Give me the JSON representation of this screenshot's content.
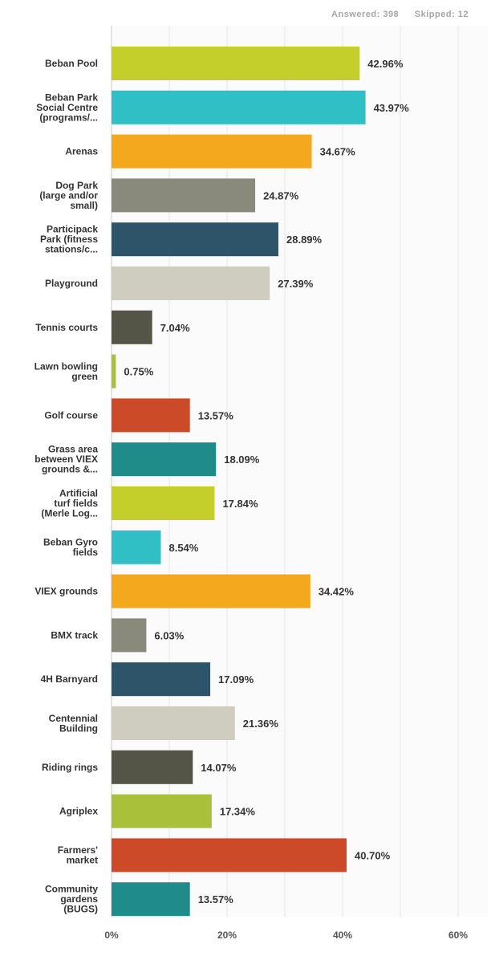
{
  "header": {
    "answered": "Answered: 398",
    "skipped": "Skipped: 12"
  },
  "chart_data": {
    "type": "bar",
    "orientation": "horizontal",
    "categories": [
      [
        "Beban Pool"
      ],
      [
        "Beban Park",
        "Social Centre",
        "(programs/..."
      ],
      [
        "Arenas"
      ],
      [
        "Dog Park",
        "(large and/or",
        "small)"
      ],
      [
        "Participack",
        "Park (fitness",
        "stations/c..."
      ],
      [
        "Playground"
      ],
      [
        "Tennis courts"
      ],
      [
        "Lawn bowling",
        "green"
      ],
      [
        "Golf course"
      ],
      [
        "Grass area",
        "between VIEX",
        "grounds &..."
      ],
      [
        "Artificial",
        "turf fields",
        "(Merle Log..."
      ],
      [
        "Beban Gyro",
        "fields"
      ],
      [
        "VIEX grounds"
      ],
      [
        "BMX track"
      ],
      [
        "4H Barnyard"
      ],
      [
        "Centennial",
        "Building"
      ],
      [
        "Riding rings"
      ],
      [
        "Agriplex"
      ],
      [
        "Farmers'",
        "market"
      ],
      [
        "Community",
        "gardens",
        "(BUGS)"
      ]
    ],
    "values": [
      42.96,
      43.97,
      34.67,
      24.87,
      28.89,
      27.39,
      7.04,
      0.75,
      13.57,
      18.09,
      17.84,
      8.54,
      34.42,
      6.03,
      17.09,
      21.36,
      14.07,
      17.34,
      40.7,
      13.57
    ],
    "value_labels": [
      "42.96%",
      "43.97%",
      "34.67%",
      "24.87%",
      "28.89%",
      "27.39%",
      "7.04%",
      "0.75%",
      "13.57%",
      "18.09%",
      "17.84%",
      "8.54%",
      "34.42%",
      "6.03%",
      "17.09%",
      "21.36%",
      "14.07%",
      "17.34%",
      "40.70%",
      "13.57%"
    ],
    "colors": [
      "#c4cf2c",
      "#2fbfc4",
      "#f4a81d",
      "#8a8a7c",
      "#2d5468",
      "#cfcdc0",
      "#545447",
      "#a9c03a",
      "#cc4a28",
      "#1f8c8a",
      "#c4cf2c",
      "#2fbfc4",
      "#f4a81d",
      "#8a8a7c",
      "#2d5468",
      "#cfcdc0",
      "#545447",
      "#a9c03a",
      "#cc4a28",
      "#1f8c8a"
    ],
    "x_ticks": [
      "0%",
      "20%",
      "40%",
      "60%"
    ],
    "xlim": [
      0,
      60
    ],
    "grid": true,
    "title": "",
    "xlabel": "",
    "ylabel": ""
  }
}
